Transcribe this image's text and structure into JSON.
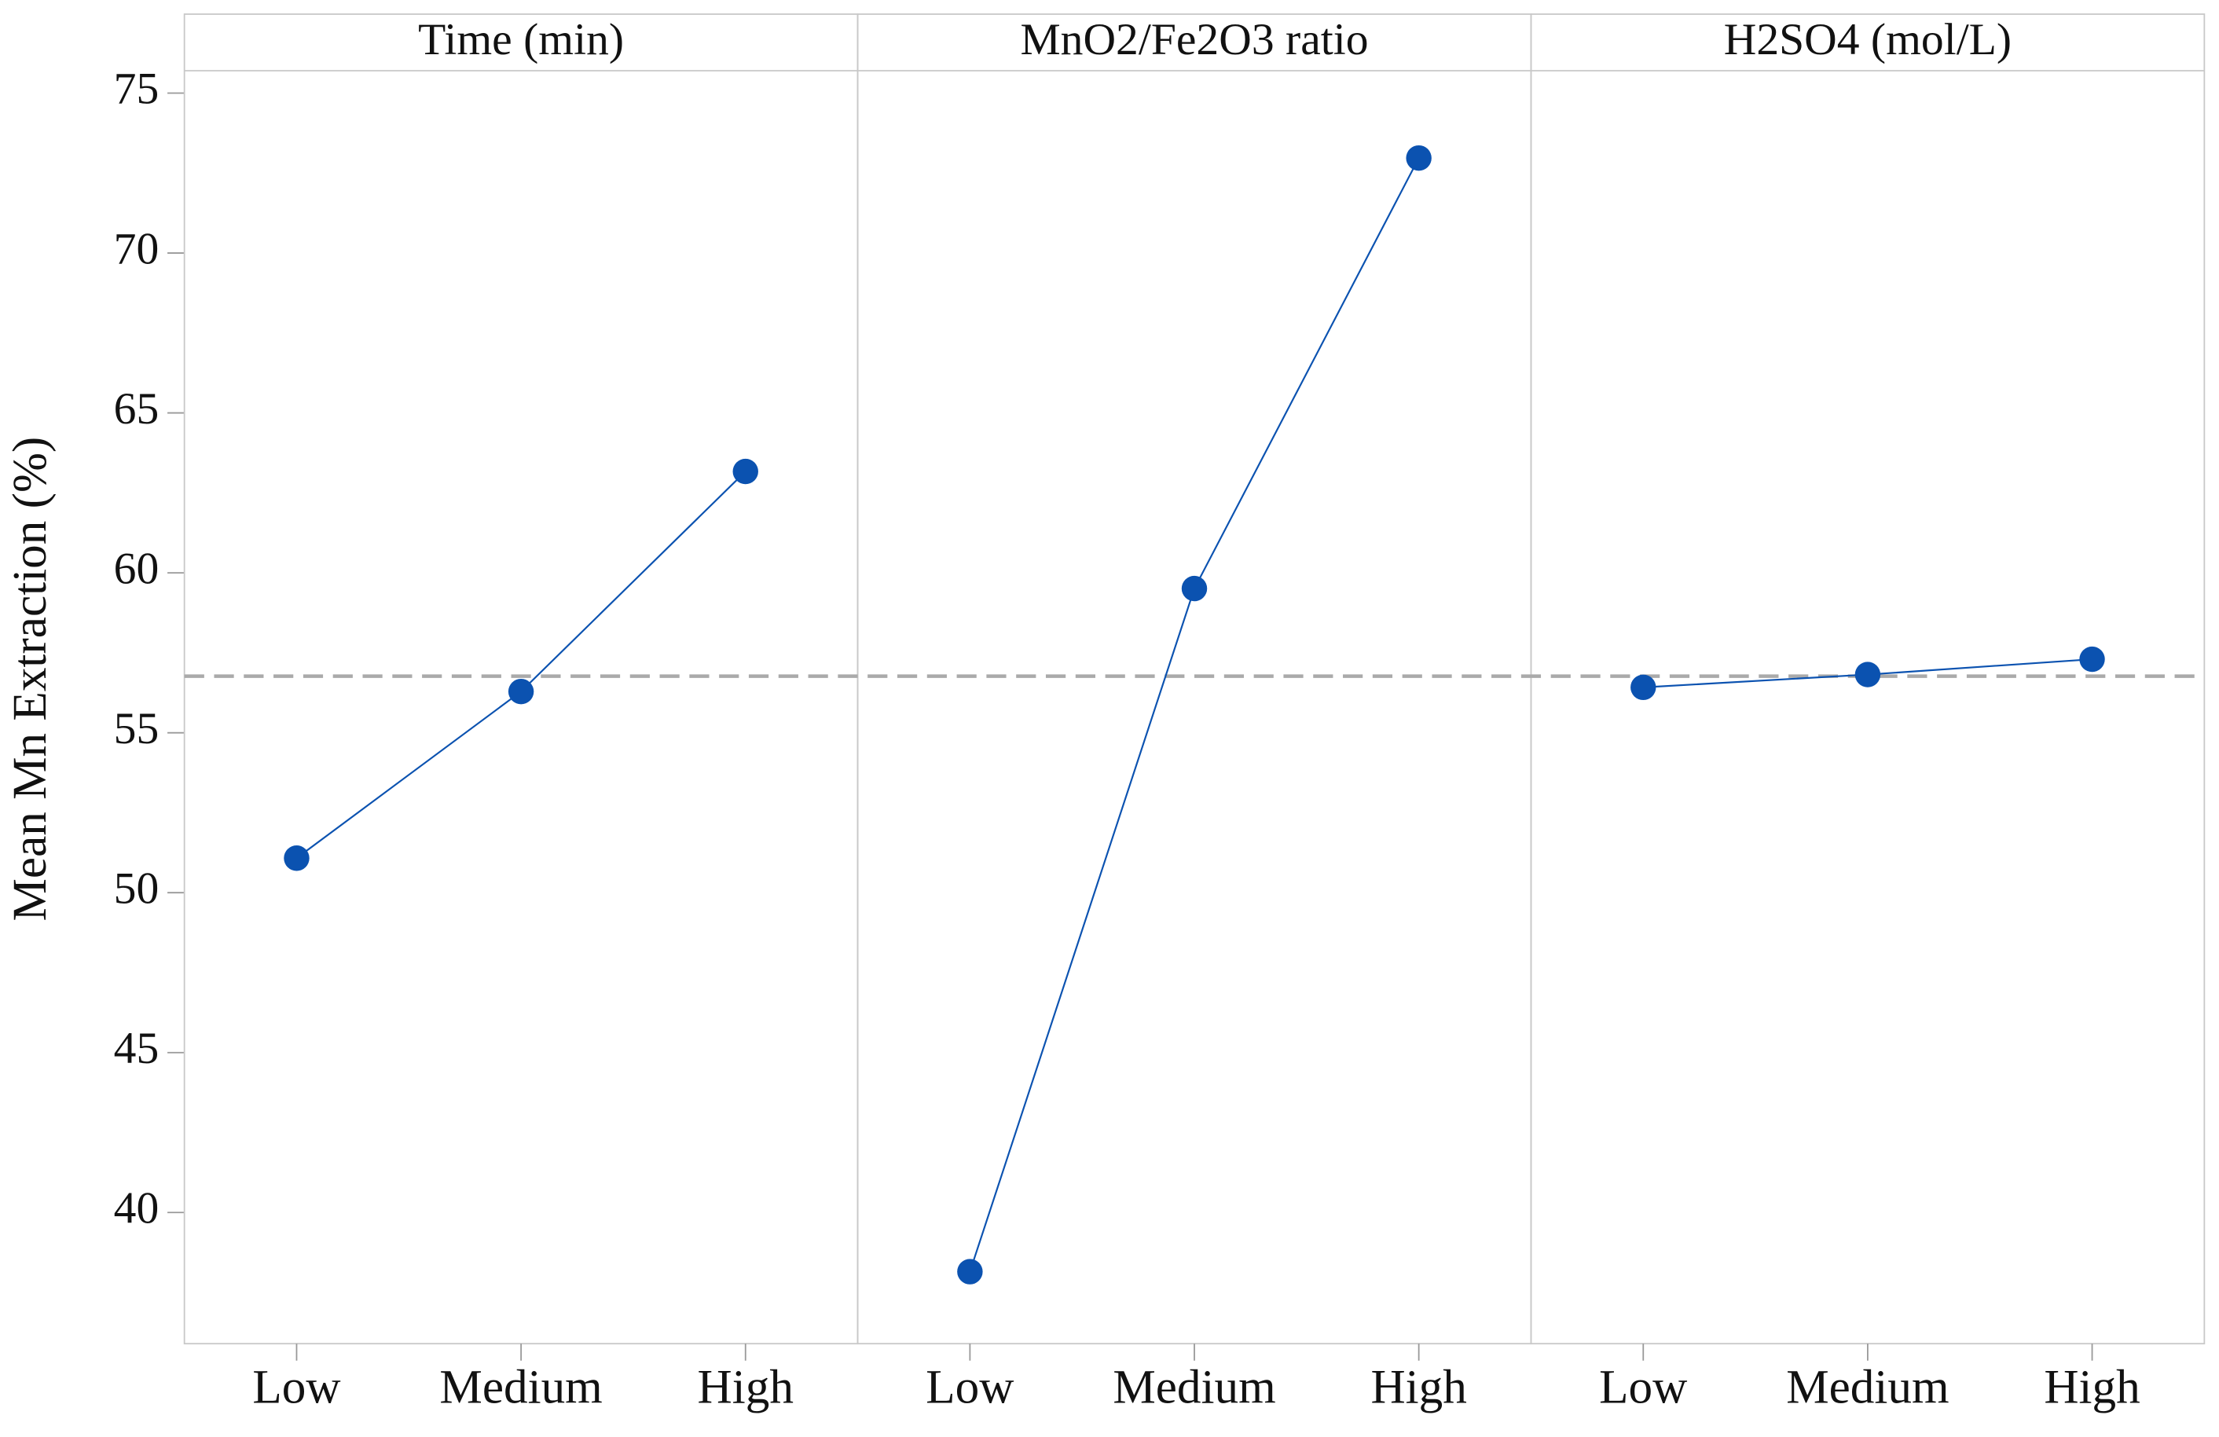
{
  "chart_data": {
    "type": "line",
    "y_label": "Mean Mn Extraction (%)",
    "ylim": [
      35.9,
      75.7
    ],
    "yticks": [
      40,
      45,
      50,
      55,
      60,
      65,
      70,
      75
    ],
    "reference_line": 56.77,
    "color": "#0b52b0",
    "panels": [
      {
        "title": "Time (min)",
        "categories": [
          "Low",
          "Medium",
          "High"
        ],
        "values": [
          51.08,
          56.29,
          63.17
        ]
      },
      {
        "title": "MnO2/Fe2O3 ratio",
        "categories": [
          "Low",
          "Medium",
          "High"
        ],
        "values": [
          38.15,
          59.51,
          72.97
        ]
      },
      {
        "title": "H2SO4 (mol/L)",
        "categories": [
          "Low",
          "Medium",
          "High"
        ],
        "values": [
          56.42,
          56.82,
          57.3
        ]
      }
    ]
  }
}
